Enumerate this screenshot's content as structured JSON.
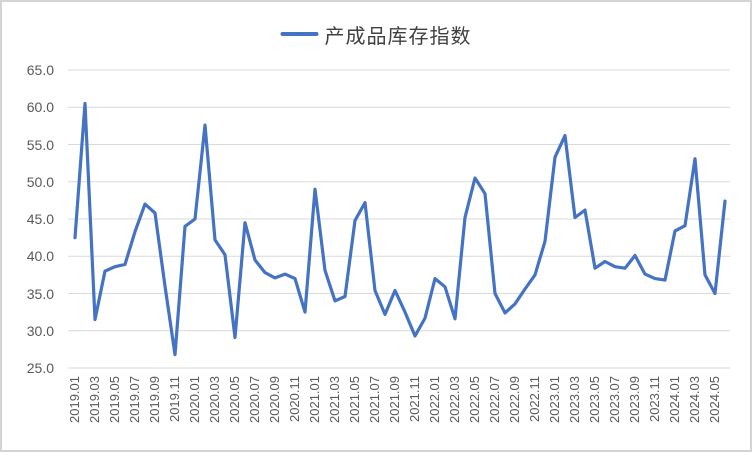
{
  "legend": {
    "label": "产成品库存指数"
  },
  "colors": {
    "series": "#4472C4",
    "gridline": "#D9D9D9",
    "axis_text": "#595959",
    "legend_text": "#404040",
    "background": "#FFFFFF",
    "frame_border": "#D4D4D4"
  },
  "chart_data": {
    "type": "line",
    "title": "",
    "series_name": "产成品库存指数",
    "legend_position": "top-center",
    "grid": "horizontal-only",
    "ylim": [
      25.0,
      65.0
    ],
    "ytick_labels": [
      "65.0",
      "60.0",
      "55.0",
      "50.0",
      "45.0",
      "40.0",
      "35.0",
      "30.0",
      "25.0"
    ],
    "xtick_every": 2,
    "x": [
      "2019.01",
      "2019.02",
      "2019.03",
      "2019.04",
      "2019.05",
      "2019.06",
      "2019.07",
      "2019.08",
      "2019.09",
      "2019.10",
      "2019.11",
      "2019.12",
      "2020.01",
      "2020.02",
      "2020.03",
      "2020.04",
      "2020.05",
      "2020.06",
      "2020.07",
      "2020.08",
      "2020.09",
      "2020.10",
      "2020.11",
      "2020.12",
      "2021.01",
      "2021.02",
      "2021.03",
      "2021.04",
      "2021.05",
      "2021.06",
      "2021.07",
      "2021.08",
      "2021.09",
      "2021.10",
      "2021.11",
      "2021.12",
      "2022.01",
      "2022.02",
      "2022.03",
      "2022.04",
      "2022.05",
      "2022.06",
      "2022.07",
      "2022.08",
      "2022.09",
      "2022.10",
      "2022.11",
      "2022.12",
      "2023.01",
      "2023.02",
      "2023.03",
      "2023.04",
      "2023.05",
      "2023.06",
      "2023.07",
      "2023.08",
      "2023.09",
      "2023.10",
      "2023.11",
      "2023.12",
      "2024.01",
      "2024.02",
      "2024.03",
      "2024.04",
      "2024.05",
      "2024.06"
    ],
    "values": [
      42.5,
      60.5,
      31.5,
      38.0,
      38.6,
      38.9,
      43.3,
      47.0,
      45.8,
      36.0,
      26.8,
      44.0,
      45.0,
      57.6,
      42.2,
      40.2,
      29.1,
      44.5,
      39.5,
      37.8,
      37.1,
      37.6,
      37.0,
      32.5,
      49.0,
      38.1,
      34.0,
      34.6,
      44.8,
      47.2,
      35.4,
      32.2,
      35.4,
      32.5,
      29.3,
      31.7,
      37.0,
      35.9,
      31.6,
      45.2,
      50.5,
      48.4,
      35.0,
      32.4,
      33.6,
      35.6,
      37.5,
      42.0,
      53.3,
      56.2,
      45.2,
      46.2,
      38.4,
      39.3,
      38.6,
      38.4,
      40.1,
      37.6,
      37.0,
      36.8,
      43.4,
      44.1,
      53.1,
      37.5,
      35.0,
      47.4
    ]
  }
}
